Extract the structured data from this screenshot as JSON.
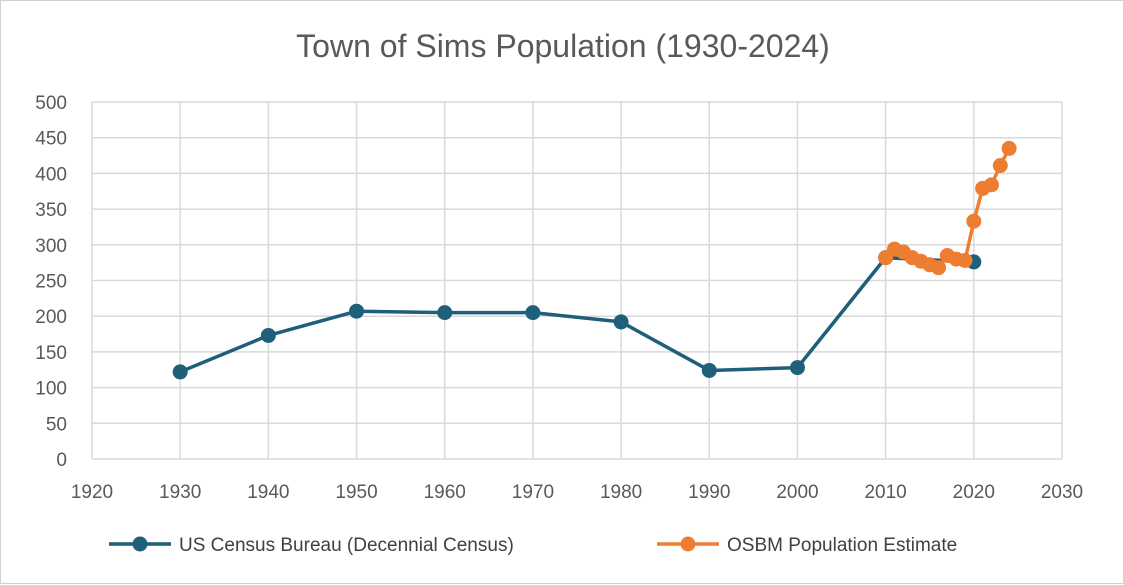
{
  "chart_data": {
    "type": "line",
    "title": "Town of Sims Population (1930-2024)",
    "xlim": [
      1920,
      2030
    ],
    "ylim": [
      0,
      500
    ],
    "x_ticks": [
      1920,
      1930,
      1940,
      1950,
      1960,
      1970,
      1980,
      1990,
      2000,
      2010,
      2020,
      2030
    ],
    "y_ticks": [
      0,
      50,
      100,
      150,
      200,
      250,
      300,
      350,
      400,
      450,
      500
    ],
    "grid": true,
    "legend_position": "bottom",
    "series": [
      {
        "name": "US Census Bureau (Decennial Census)",
        "color": "#1f5f7a",
        "marker": "circle",
        "x": [
          1930,
          1940,
          1950,
          1960,
          1970,
          1980,
          1990,
          2000,
          2010,
          2020
        ],
        "y": [
          122,
          173,
          207,
          205,
          205,
          192,
          124,
          128,
          282,
          276
        ]
      },
      {
        "name": "OSBM Population Estimate",
        "color": "#ed7d31",
        "marker": "circle",
        "x": [
          2010,
          2011,
          2012,
          2013,
          2014,
          2015,
          2016,
          2017,
          2018,
          2019,
          2020,
          2021,
          2022,
          2023,
          2024
        ],
        "y": [
          282,
          294,
          290,
          282,
          277,
          272,
          268,
          285,
          280,
          278,
          333,
          379,
          384,
          411,
          435
        ]
      }
    ]
  }
}
